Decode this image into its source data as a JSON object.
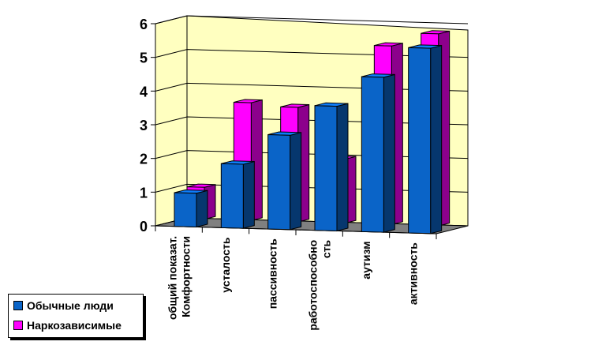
{
  "chart_data": {
    "type": "bar",
    "categories": [
      "общий показат. Комфортности",
      "усталость",
      "пассивность",
      "работоспособность",
      "аутизм",
      "активность"
    ],
    "category_lines": [
      [
        "общий показат.",
        "Комфортности"
      ],
      [
        "усталость"
      ],
      [
        "пассивность"
      ],
      [
        "работоспособно",
        "сть"
      ],
      [
        "аутизм"
      ],
      [
        "активность"
      ]
    ],
    "series": [
      {
        "name": "Обычные люди",
        "values": [
          1.0,
          1.9,
          2.8,
          3.7,
          4.6,
          5.5
        ],
        "color": "#0a64c8"
      },
      {
        "name": "Наркозависимые",
        "values": [
          0.95,
          3.5,
          3.4,
          1.9,
          5.3,
          5.7
        ],
        "color": "#ff00ff"
      }
    ],
    "ylim": [
      0,
      6
    ],
    "yticks": [
      "0",
      "1",
      "2",
      "3",
      "4",
      "5",
      "6"
    ],
    "grid": true,
    "style": "3d-clustered",
    "legend_position": "bottom-left",
    "colors": {
      "wall": "#ffffc0",
      "floor": "#808080"
    }
  }
}
